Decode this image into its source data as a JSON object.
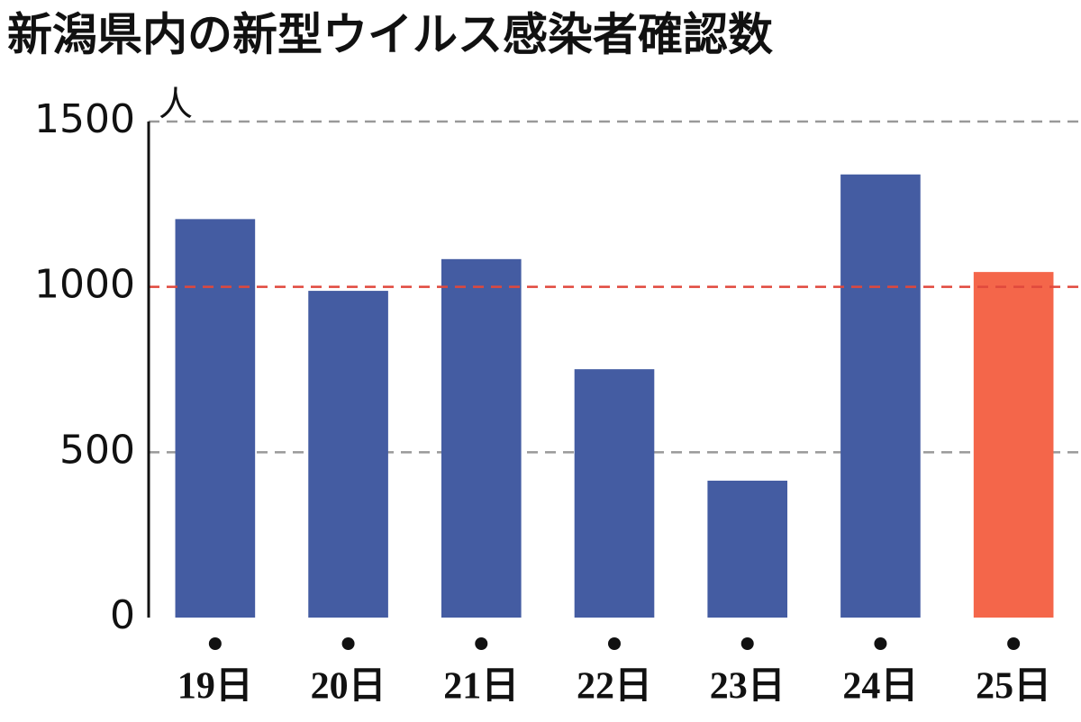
{
  "chart_data": {
    "type": "bar",
    "title": "新潟県内の新型ウイルス感染者確認数",
    "y_unit": "人",
    "categories": [
      "19日",
      "20日",
      "21日",
      "22日",
      "23日",
      "24日",
      "25日"
    ],
    "values": [
      1205,
      988,
      1084,
      751,
      414,
      1340,
      1045
    ],
    "colors": [
      "#445ca2",
      "#445ca2",
      "#445ca2",
      "#445ca2",
      "#445ca2",
      "#445ca2",
      "#f4664a"
    ],
    "ylim": [
      0,
      1500
    ],
    "yticks": [
      0,
      500,
      1000,
      1500
    ],
    "grid": true,
    "grid_color": "#999999",
    "reference_line": {
      "value": 1000,
      "color": "#e0483c"
    }
  }
}
